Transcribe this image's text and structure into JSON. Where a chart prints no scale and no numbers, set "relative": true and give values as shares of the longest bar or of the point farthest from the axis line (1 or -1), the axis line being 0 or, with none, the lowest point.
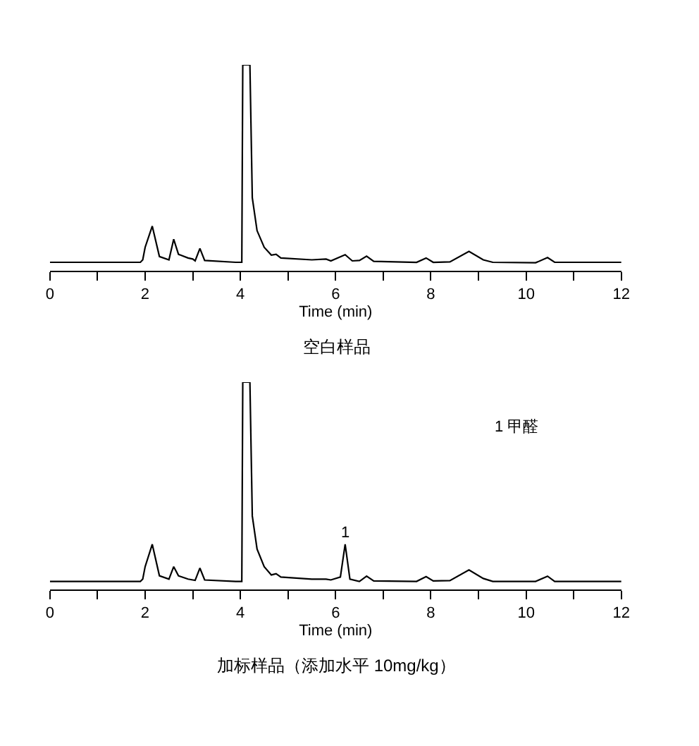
{
  "chart_data": [
    {
      "type": "line",
      "title": "空白样品",
      "xlabel": "Time (min)",
      "relative": true,
      "xlim": [
        0,
        12
      ],
      "xticks": [
        0,
        {
          "value": 1,
          "label": null
        },
        2,
        {
          "value": 3,
          "label": null
        },
        4,
        {
          "value": 5,
          "label": null
        },
        6,
        {
          "value": 7,
          "label": null
        },
        8,
        {
          "value": 9,
          "label": null
        },
        10,
        {
          "value": 11,
          "label": null
        },
        12
      ],
      "series": [
        {
          "color": "#000000",
          "x": [
            0,
            1.9,
            1.95,
            2.0,
            2.15,
            2.3,
            2.5,
            2.6,
            2.7,
            2.9,
            3.0,
            3.05,
            3.15,
            3.25,
            3.9,
            4.03,
            4.05,
            4.2,
            4.25,
            4.35,
            4.5,
            4.65,
            4.75,
            4.85,
            5.5,
            5.8,
            5.9,
            6.2,
            6.35,
            6.5,
            6.65,
            6.8,
            7.7,
            7.9,
            8.05,
            8.4,
            8.8,
            9.1,
            9.3,
            10.2,
            10.45,
            10.6,
            12
          ],
          "values": [
            0.041,
            0.041,
            0.053,
            0.114,
            0.217,
            0.069,
            0.053,
            0.153,
            0.08,
            0.062,
            0.057,
            0.048,
            0.108,
            0.05,
            0.041,
            0.041,
            1,
            1,
            0.355,
            0.195,
            0.114,
            0.076,
            0.08,
            0.062,
            0.053,
            0.057,
            0.048,
            0.078,
            0.048,
            0.05,
            0.071,
            0.046,
            0.041,
            0.062,
            0.041,
            0.043,
            0.094,
            0.053,
            0.041,
            0.039,
            0.064,
            0.041,
            0.041
          ]
        }
      ]
    },
    {
      "type": "line",
      "title": "加标样品（添加水平 10mg/kg）",
      "xlabel": "Time (min)",
      "relative": true,
      "xlim": [
        0,
        12
      ],
      "xticks": [
        0,
        {
          "value": 1,
          "label": null
        },
        2,
        {
          "value": 3,
          "label": null
        },
        4,
        {
          "value": 5,
          "label": null
        },
        6,
        {
          "value": 7,
          "label": null
        },
        8,
        {
          "value": 9,
          "label": null
        },
        10,
        {
          "value": 11,
          "label": null
        },
        12
      ],
      "annotations": [
        {
          "text": "1",
          "x": 6.2,
          "y": 0.218
        },
        "1 甲醛"
      ],
      "series": [
        {
          "color": "#000000",
          "x": [
            0,
            1.9,
            1.95,
            2.0,
            2.15,
            2.3,
            2.5,
            2.6,
            2.7,
            2.9,
            3.0,
            3.05,
            3.15,
            3.25,
            3.9,
            4.03,
            4.05,
            4.2,
            4.25,
            4.35,
            4.5,
            4.65,
            4.75,
            4.85,
            5.5,
            5.8,
            5.9,
            6.1,
            6.2,
            6.3,
            6.5,
            6.65,
            6.8,
            7.7,
            7.9,
            8.05,
            8.4,
            8.8,
            9.1,
            9.3,
            10.2,
            10.45,
            10.6,
            12
          ],
          "values": [
            0.039,
            0.039,
            0.05,
            0.11,
            0.218,
            0.066,
            0.05,
            0.11,
            0.066,
            0.05,
            0.046,
            0.044,
            0.103,
            0.046,
            0.039,
            0.039,
            1,
            1,
            0.355,
            0.195,
            0.11,
            0.07,
            0.076,
            0.06,
            0.05,
            0.05,
            0.046,
            0.06,
            0.218,
            0.05,
            0.039,
            0.064,
            0.041,
            0.039,
            0.062,
            0.041,
            0.043,
            0.094,
            0.053,
            0.039,
            0.039,
            0.064,
            0.039,
            0.039
          ]
        }
      ]
    }
  ]
}
